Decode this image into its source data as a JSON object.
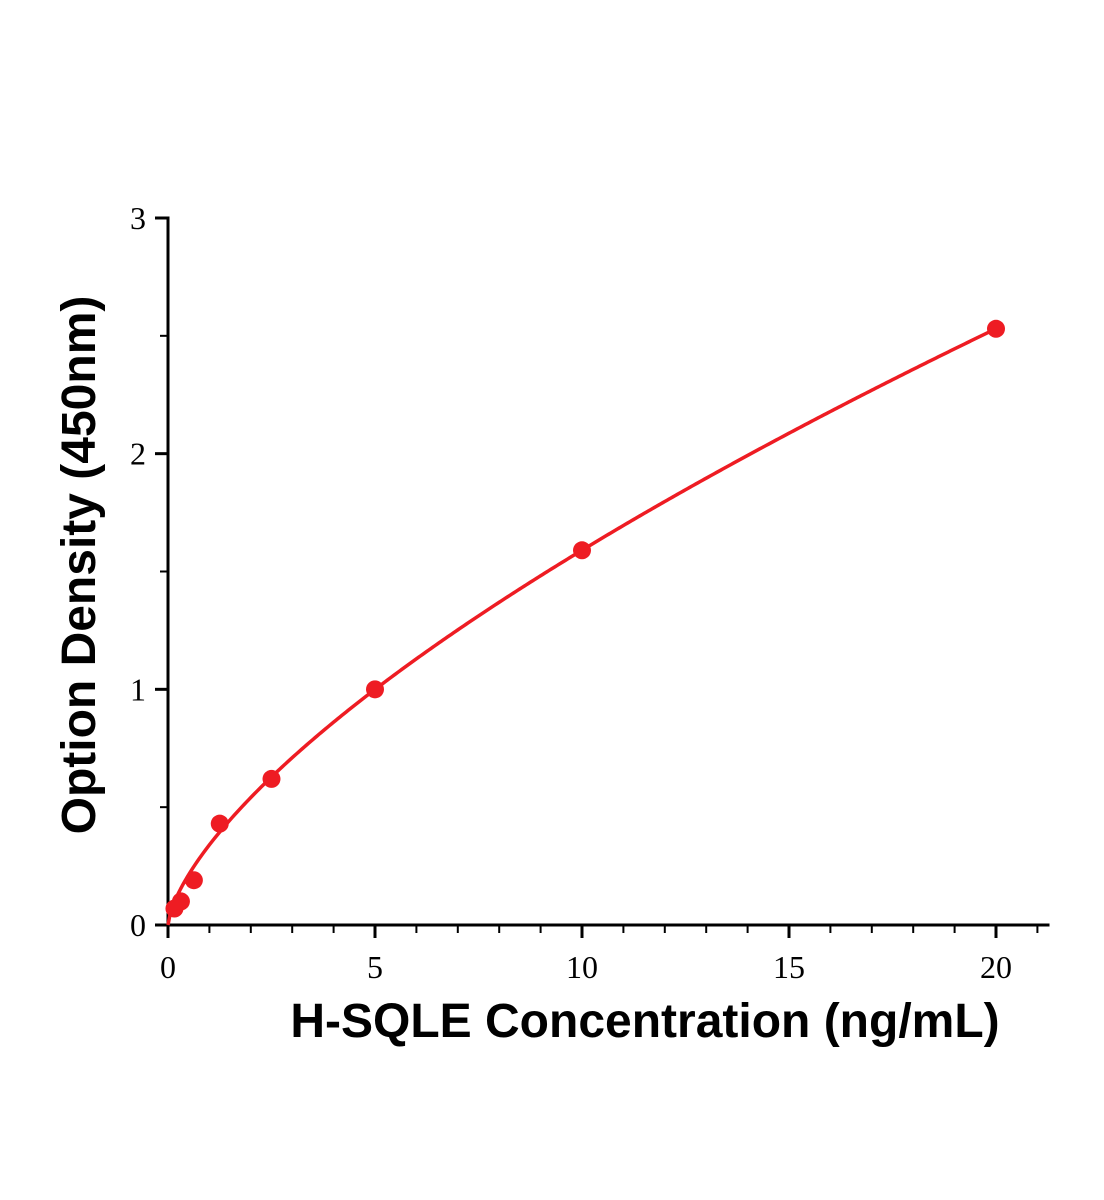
{
  "chart_data": {
    "type": "scatter",
    "title": "",
    "xlabel": "H-SQLE Concentration (ng/mL)",
    "ylabel": "Option Density (450nm)",
    "x": [
      0.156,
      0.3125,
      0.625,
      1.25,
      2.5,
      5,
      10,
      20
    ],
    "y": [
      0.07,
      0.1,
      0.19,
      0.43,
      0.62,
      1.0,
      1.59,
      2.53
    ],
    "x_ticks": [
      0,
      5,
      10,
      15,
      20
    ],
    "y_ticks": [
      0,
      1,
      2,
      3
    ],
    "x_minor_step": 1,
    "y_minor_step": 0.5,
    "xlim": [
      0,
      21.25
    ],
    "ylim": [
      0,
      3
    ],
    "fit": {
      "type": "power",
      "a": 0.34,
      "b": 0.67
    },
    "color": "#ee1c23",
    "axis_color": "#000000",
    "grid": "off",
    "legend": "none"
  }
}
